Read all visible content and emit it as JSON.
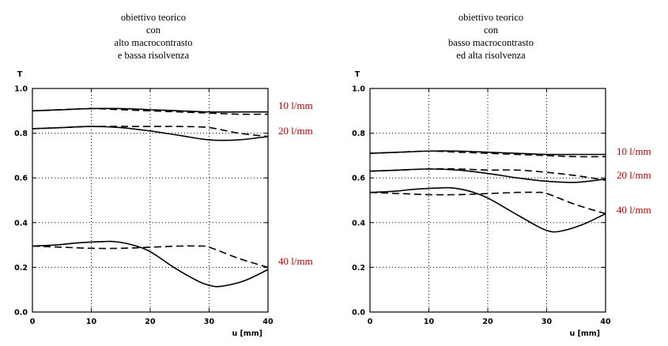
{
  "chart_data": [
    {
      "type": "line",
      "title": [
        "obiettivo teorico",
        "con",
        "alto macrocontrasto",
        "e bassa risolvenza"
      ],
      "xlabel": "u [mm]",
      "ylabel": "T",
      "xlim": [
        0,
        40
      ],
      "ylim": [
        0,
        1.0
      ],
      "xticks": [
        "0",
        "10",
        "20",
        "30",
        "40"
      ],
      "yticks": [
        "0.0",
        "0.2",
        "0.4",
        "0.6",
        "0.8",
        "1.0"
      ],
      "grid": true,
      "series": [
        {
          "name": "10 l/mm",
          "style": "solid",
          "x": [
            0,
            5,
            10,
            15,
            20,
            25,
            30,
            35,
            40
          ],
          "y": [
            0.9,
            0.905,
            0.91,
            0.91,
            0.905,
            0.9,
            0.895,
            0.895,
            0.895
          ]
        },
        {
          "name": "10 l/mm",
          "style": "dashed",
          "x": [
            0,
            5,
            10,
            15,
            20,
            25,
            30,
            35,
            40
          ],
          "y": [
            0.9,
            0.905,
            0.91,
            0.905,
            0.9,
            0.895,
            0.89,
            0.885,
            0.885
          ]
        },
        {
          "name": "20 l/mm",
          "style": "solid",
          "x": [
            0,
            5,
            10,
            15,
            20,
            25,
            30,
            35,
            40
          ],
          "y": [
            0.82,
            0.825,
            0.83,
            0.825,
            0.81,
            0.79,
            0.77,
            0.77,
            0.785
          ]
        },
        {
          "name": "20 l/mm",
          "style": "dashed",
          "x": [
            0,
            5,
            10,
            15,
            20,
            25,
            30,
            35,
            40
          ],
          "y": [
            0.82,
            0.825,
            0.83,
            0.83,
            0.83,
            0.83,
            0.825,
            0.8,
            0.785
          ]
        },
        {
          "name": "40 l/mm",
          "style": "solid",
          "x": [
            0,
            4,
            8,
            12,
            14,
            17,
            20,
            24,
            28,
            30,
            32,
            36,
            40
          ],
          "y": [
            0.295,
            0.3,
            0.31,
            0.315,
            0.315,
            0.3,
            0.27,
            0.2,
            0.14,
            0.12,
            0.115,
            0.14,
            0.19
          ]
        },
        {
          "name": "40 l/mm",
          "style": "dashed",
          "x": [
            0,
            5,
            10,
            15,
            20,
            25,
            28,
            30,
            35,
            40
          ],
          "y": [
            0.295,
            0.29,
            0.285,
            0.285,
            0.29,
            0.295,
            0.295,
            0.29,
            0.24,
            0.2
          ]
        }
      ],
      "annotations": [
        "10 l/mm",
        "20 l/mm",
        "40 l/mm"
      ]
    },
    {
      "type": "line",
      "title": [
        "obiettivo teorico",
        "con",
        "basso macrocontrasto",
        "ed alta risolvenza"
      ],
      "xlabel": "u [mm]",
      "ylabel": "T",
      "xlim": [
        0,
        40
      ],
      "ylim": [
        0,
        1.0
      ],
      "xticks": [
        "0",
        "10",
        "20",
        "30",
        "40"
      ],
      "yticks": [
        "0.0",
        "0.2",
        "0.4",
        "0.6",
        "0.8",
        "1.0"
      ],
      "grid": true,
      "series": [
        {
          "name": "10 l/mm",
          "style": "solid",
          "x": [
            0,
            5,
            10,
            15,
            20,
            25,
            30,
            35,
            40
          ],
          "y": [
            0.71,
            0.715,
            0.72,
            0.72,
            0.715,
            0.71,
            0.705,
            0.705,
            0.705
          ]
        },
        {
          "name": "10 l/mm",
          "style": "dashed",
          "x": [
            0,
            5,
            10,
            15,
            20,
            25,
            30,
            35,
            40
          ],
          "y": [
            0.71,
            0.715,
            0.72,
            0.715,
            0.71,
            0.705,
            0.7,
            0.695,
            0.695
          ]
        },
        {
          "name": "20 l/mm",
          "style": "solid",
          "x": [
            0,
            5,
            10,
            15,
            20,
            25,
            30,
            35,
            40
          ],
          "y": [
            0.63,
            0.635,
            0.64,
            0.635,
            0.62,
            0.6,
            0.585,
            0.58,
            0.595
          ]
        },
        {
          "name": "20 l/mm",
          "style": "dashed",
          "x": [
            0,
            5,
            10,
            15,
            20,
            25,
            30,
            35,
            40
          ],
          "y": [
            0.63,
            0.635,
            0.64,
            0.64,
            0.635,
            0.635,
            0.625,
            0.61,
            0.59
          ]
        },
        {
          "name": "40 l/mm",
          "style": "solid",
          "x": [
            0,
            4,
            8,
            12,
            14,
            17,
            20,
            24,
            28,
            30,
            32,
            36,
            40
          ],
          "y": [
            0.535,
            0.54,
            0.55,
            0.555,
            0.555,
            0.54,
            0.51,
            0.45,
            0.39,
            0.365,
            0.36,
            0.39,
            0.44
          ]
        },
        {
          "name": "40 l/mm",
          "style": "dashed",
          "x": [
            0,
            5,
            10,
            15,
            20,
            25,
            28,
            30,
            35,
            40
          ],
          "y": [
            0.535,
            0.53,
            0.525,
            0.525,
            0.53,
            0.535,
            0.535,
            0.53,
            0.48,
            0.44
          ]
        }
      ],
      "annotations": [
        "10 l/mm",
        "20 l/mm",
        "40 l/mm"
      ]
    }
  ]
}
